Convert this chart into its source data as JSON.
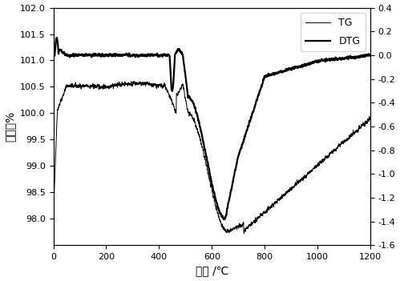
{
  "title": "",
  "xlabel": "温度 /℃",
  "ylabel_left": "质量／%",
  "ylabel_right": "",
  "x_min": 0,
  "x_max": 1200,
  "yleft_min": 97.5,
  "yleft_max": 102.0,
  "yright_min": -1.6,
  "yright_max": 0.4,
  "yleft_ticks": [
    98.0,
    98.5,
    99.0,
    99.5,
    100.0,
    100.5,
    101.0,
    101.5,
    102.0
  ],
  "yright_ticks": [
    -1.6,
    -1.4,
    -1.2,
    -1.0,
    -0.8,
    -0.6,
    -0.4,
    -0.2,
    0.0,
    0.2,
    0.4
  ],
  "xticks": [
    0,
    200,
    400,
    600,
    800,
    1000,
    1200
  ],
  "legend_tg": "TG",
  "legend_dtg": "DTG",
  "tg_color": "#000000",
  "dtg_color": "#000000",
  "background_color": "#ffffff",
  "tg_linewidth": 0.7,
  "dtg_linewidth": 1.6,
  "noise_seed": 42
}
